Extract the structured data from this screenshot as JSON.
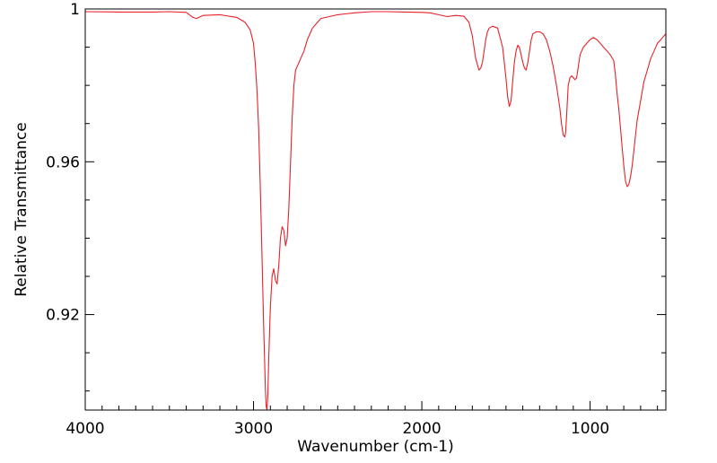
{
  "chart_data": {
    "type": "line",
    "title": "",
    "xlabel": "Wavenumber (cm-1)",
    "ylabel": "Relative Transmittance",
    "xlim": [
      4000,
      550
    ],
    "ylim": [
      0.895,
      1.0
    ],
    "x_reversed": true,
    "grid": false,
    "legend": "none",
    "x_ticks": [
      {
        "value": 4000,
        "label": "4000"
      },
      {
        "value": 3000,
        "label": "3000"
      },
      {
        "value": 2000,
        "label": "2000"
      },
      {
        "value": 1000,
        "label": "1000"
      }
    ],
    "y_ticks": [
      {
        "value": 1.0,
        "label": "1"
      },
      {
        "value": 0.96,
        "label": "0.96"
      },
      {
        "value": 0.92,
        "label": "0.92"
      }
    ],
    "series": [
      {
        "color": "#e8202a",
        "x": [
          4000,
          3800,
          3600,
          3500,
          3400,
          3360,
          3340,
          3300,
          3200,
          3100,
          3050,
          3020,
          3000,
          2990,
          2980,
          2970,
          2960,
          2950,
          2940,
          2930,
          2925,
          2920,
          2915,
          2910,
          2900,
          2890,
          2880,
          2870,
          2860,
          2850,
          2840,
          2830,
          2820,
          2810,
          2800,
          2790,
          2780,
          2770,
          2760,
          2750,
          2740,
          2720,
          2700,
          2680,
          2650,
          2620,
          2600,
          2500,
          2400,
          2300,
          2200,
          2100,
          2000,
          1950,
          1900,
          1850,
          1800,
          1750,
          1720,
          1700,
          1680,
          1660,
          1650,
          1640,
          1630,
          1620,
          1610,
          1600,
          1580,
          1550,
          1520,
          1500,
          1490,
          1480,
          1470,
          1460,
          1450,
          1440,
          1430,
          1420,
          1410,
          1400,
          1390,
          1380,
          1370,
          1360,
          1350,
          1340,
          1320,
          1300,
          1280,
          1260,
          1240,
          1220,
          1200,
          1180,
          1170,
          1160,
          1150,
          1145,
          1140,
          1135,
          1130,
          1120,
          1110,
          1100,
          1090,
          1080,
          1070,
          1060,
          1050,
          1040,
          1020,
          1000,
          980,
          960,
          940,
          920,
          900,
          880,
          860,
          850,
          840,
          830,
          820,
          810,
          800,
          790,
          780,
          770,
          760,
          750,
          740,
          730,
          720,
          700,
          680,
          660,
          640,
          620,
          600,
          580,
          560,
          550
        ],
        "y": [
          0.9993,
          0.9992,
          0.9992,
          0.9993,
          0.9991,
          0.9978,
          0.9975,
          0.9983,
          0.9985,
          0.9978,
          0.9965,
          0.9945,
          0.991,
          0.986,
          0.979,
          0.969,
          0.954,
          0.936,
          0.917,
          0.901,
          0.896,
          0.895,
          0.899,
          0.908,
          0.922,
          0.93,
          0.932,
          0.929,
          0.928,
          0.933,
          0.94,
          0.943,
          0.942,
          0.938,
          0.94,
          0.948,
          0.96,
          0.972,
          0.98,
          0.984,
          0.985,
          0.987,
          0.989,
          0.992,
          0.995,
          0.9965,
          0.9975,
          0.9985,
          0.999,
          0.9993,
          0.9993,
          0.9992,
          0.9991,
          0.999,
          0.9985,
          0.998,
          0.9983,
          0.9981,
          0.9965,
          0.993,
          0.987,
          0.984,
          0.9845,
          0.986,
          0.989,
          0.992,
          0.994,
          0.995,
          0.9955,
          0.995,
          0.99,
          0.982,
          0.977,
          0.9745,
          0.976,
          0.981,
          0.986,
          0.989,
          0.9905,
          0.99,
          0.988,
          0.986,
          0.9845,
          0.984,
          0.986,
          0.989,
          0.992,
          0.9935,
          0.994,
          0.994,
          0.9935,
          0.992,
          0.989,
          0.985,
          0.98,
          0.974,
          0.97,
          0.967,
          0.9665,
          0.968,
          0.972,
          0.976,
          0.98,
          0.982,
          0.9825,
          0.982,
          0.9815,
          0.982,
          0.985,
          0.988,
          0.989,
          0.99,
          0.991,
          0.992,
          0.9925,
          0.992,
          0.991,
          0.99,
          0.989,
          0.988,
          0.9865,
          0.983,
          0.978,
          0.974,
          0.969,
          0.964,
          0.959,
          0.955,
          0.9535,
          0.954,
          0.956,
          0.959,
          0.963,
          0.967,
          0.971,
          0.976,
          0.981,
          0.984,
          0.987,
          0.989,
          0.991,
          0.992,
          0.993,
          0.9935
        ]
      }
    ]
  }
}
